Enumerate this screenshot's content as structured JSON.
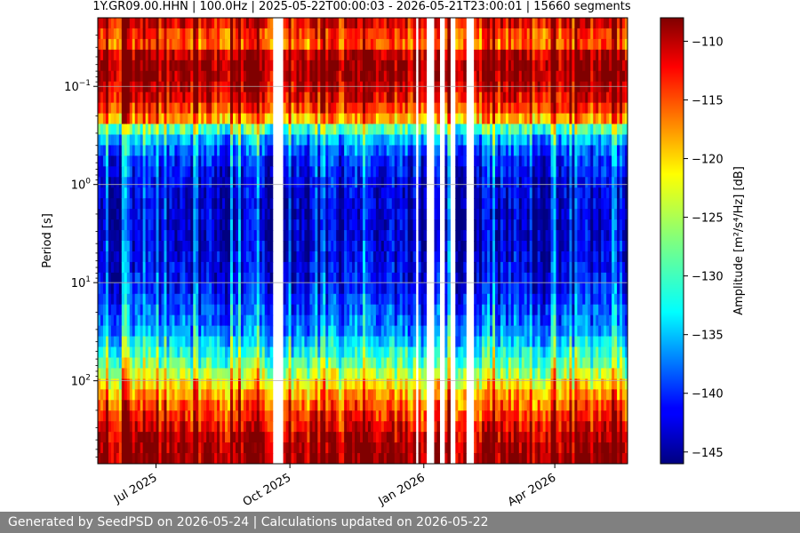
{
  "chart_data": {
    "type": "heatmap",
    "title": "1Y.GR09.00.HHN | 100.0Hz | 2025-05-22T00:00:03 - 2026-05-21T23:00:01 | 15660 segments",
    "ylabel": "Period [s]",
    "xlabel": "",
    "colorbar_label": "Amplitude [m²/s⁴/Hz] [dB]",
    "x_range": [
      "2025-05-22",
      "2026-05-21"
    ],
    "y_scale": "log",
    "y_range_seconds": [
      0.02,
      700
    ],
    "y_axis_inverted": true,
    "x_ticks": [
      {
        "date": "2025-07-01",
        "label": "Jul 2025"
      },
      {
        "date": "2025-10-01",
        "label": "Oct 2025"
      },
      {
        "date": "2026-01-01",
        "label": "Jan 2026"
      },
      {
        "date": "2026-04-01",
        "label": "Apr 2026"
      }
    ],
    "y_ticks": [
      {
        "value": 0.1,
        "base": "10",
        "exp": "−1"
      },
      {
        "value": 1,
        "base": "10",
        "exp": "0"
      },
      {
        "value": 10,
        "base": "10",
        "exp": "1"
      },
      {
        "value": 100,
        "base": "10",
        "exp": "2"
      }
    ],
    "grid": true,
    "colormap": "jet",
    "color_range_db": [
      -146,
      -108
    ],
    "colorbar_ticks": [
      -110,
      -115,
      -120,
      -125,
      -130,
      -135,
      -140,
      -145
    ],
    "colorbar_tick_labels": [
      "−110",
      "−115",
      "−120",
      "−125",
      "−130",
      "−135",
      "−140",
      "−145"
    ],
    "data_gaps": [
      [
        "2025-09-19",
        "2025-09-25"
      ],
      [
        "2025-12-27",
        "2025-12-28"
      ],
      [
        "2026-01-03",
        "2026-01-07"
      ],
      [
        "2026-01-12",
        "2026-01-15"
      ],
      [
        "2026-01-19",
        "2026-01-21"
      ],
      [
        "2026-01-30",
        "2026-02-03"
      ]
    ],
    "period_profile_db": [
      {
        "period": 0.02,
        "db": -111
      },
      {
        "period": 0.035,
        "db": -118
      },
      {
        "period": 0.05,
        "db": -110
      },
      {
        "period": 0.07,
        "db": -109
      },
      {
        "period": 0.12,
        "db": -112
      },
      {
        "period": 0.2,
        "db": -117
      },
      {
        "period": 0.3,
        "db": -133
      },
      {
        "period": 0.5,
        "db": -140
      },
      {
        "period": 1,
        "db": -143
      },
      {
        "period": 3,
        "db": -144
      },
      {
        "period": 10,
        "db": -142
      },
      {
        "period": 30,
        "db": -137
      },
      {
        "period": 60,
        "db": -130
      },
      {
        "period": 100,
        "db": -123
      },
      {
        "period": 200,
        "db": -116
      },
      {
        "period": 400,
        "db": -110
      },
      {
        "period": 700,
        "db": -109
      }
    ]
  },
  "footer": {
    "text": "Generated by SeedPSD on 2026-05-24 | Calculations updated on 2026-05-22"
  }
}
